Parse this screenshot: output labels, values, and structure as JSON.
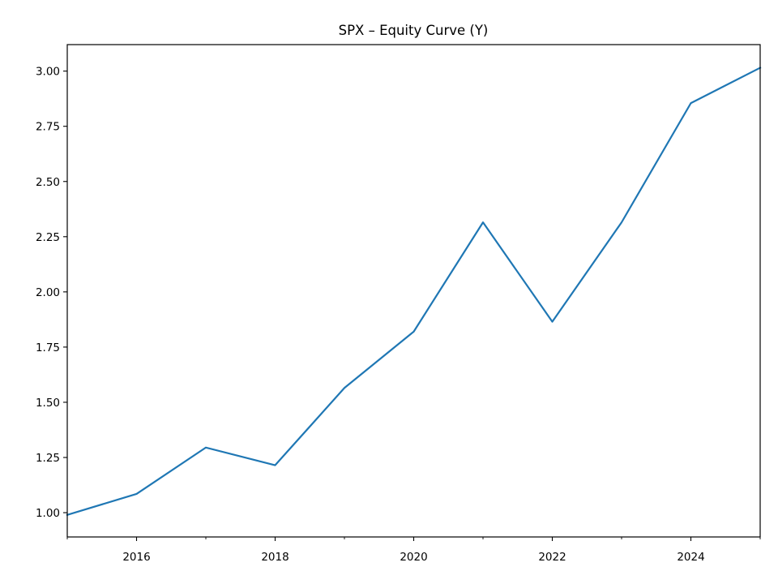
{
  "chart_data": {
    "type": "line",
    "title": "SPX – Equity Curve (Y)",
    "xlabel": "",
    "ylabel": "",
    "x_axis_kind": "year",
    "xlim": [
      2015,
      2025
    ],
    "ylim": [
      0.89,
      3.12
    ],
    "x_ticks_major": [
      2016,
      2018,
      2020,
      2022,
      2024
    ],
    "x_tick_labels": [
      "2016",
      "2018",
      "2020",
      "2022",
      "2024"
    ],
    "x_ticks_minor": [
      2015,
      2017,
      2019,
      2021,
      2023,
      2025
    ],
    "y_ticks": [
      1.0,
      1.25,
      1.5,
      1.75,
      2.0,
      2.25,
      2.5,
      2.75,
      3.0
    ],
    "y_tick_labels": [
      "1.00",
      "1.25",
      "1.50",
      "1.75",
      "2.00",
      "2.25",
      "2.50",
      "2.75",
      "3.00"
    ],
    "grid": false,
    "legend": "none",
    "series": [
      {
        "color": "#1f77b4",
        "x": [
          2015,
          2016,
          2017,
          2018,
          2019,
          2020,
          2021,
          2022,
          2023,
          2024,
          2025
        ],
        "values": [
          0.99,
          1.085,
          1.295,
          1.215,
          1.565,
          1.82,
          2.315,
          1.865,
          2.315,
          2.855,
          3.015
        ]
      }
    ]
  }
}
